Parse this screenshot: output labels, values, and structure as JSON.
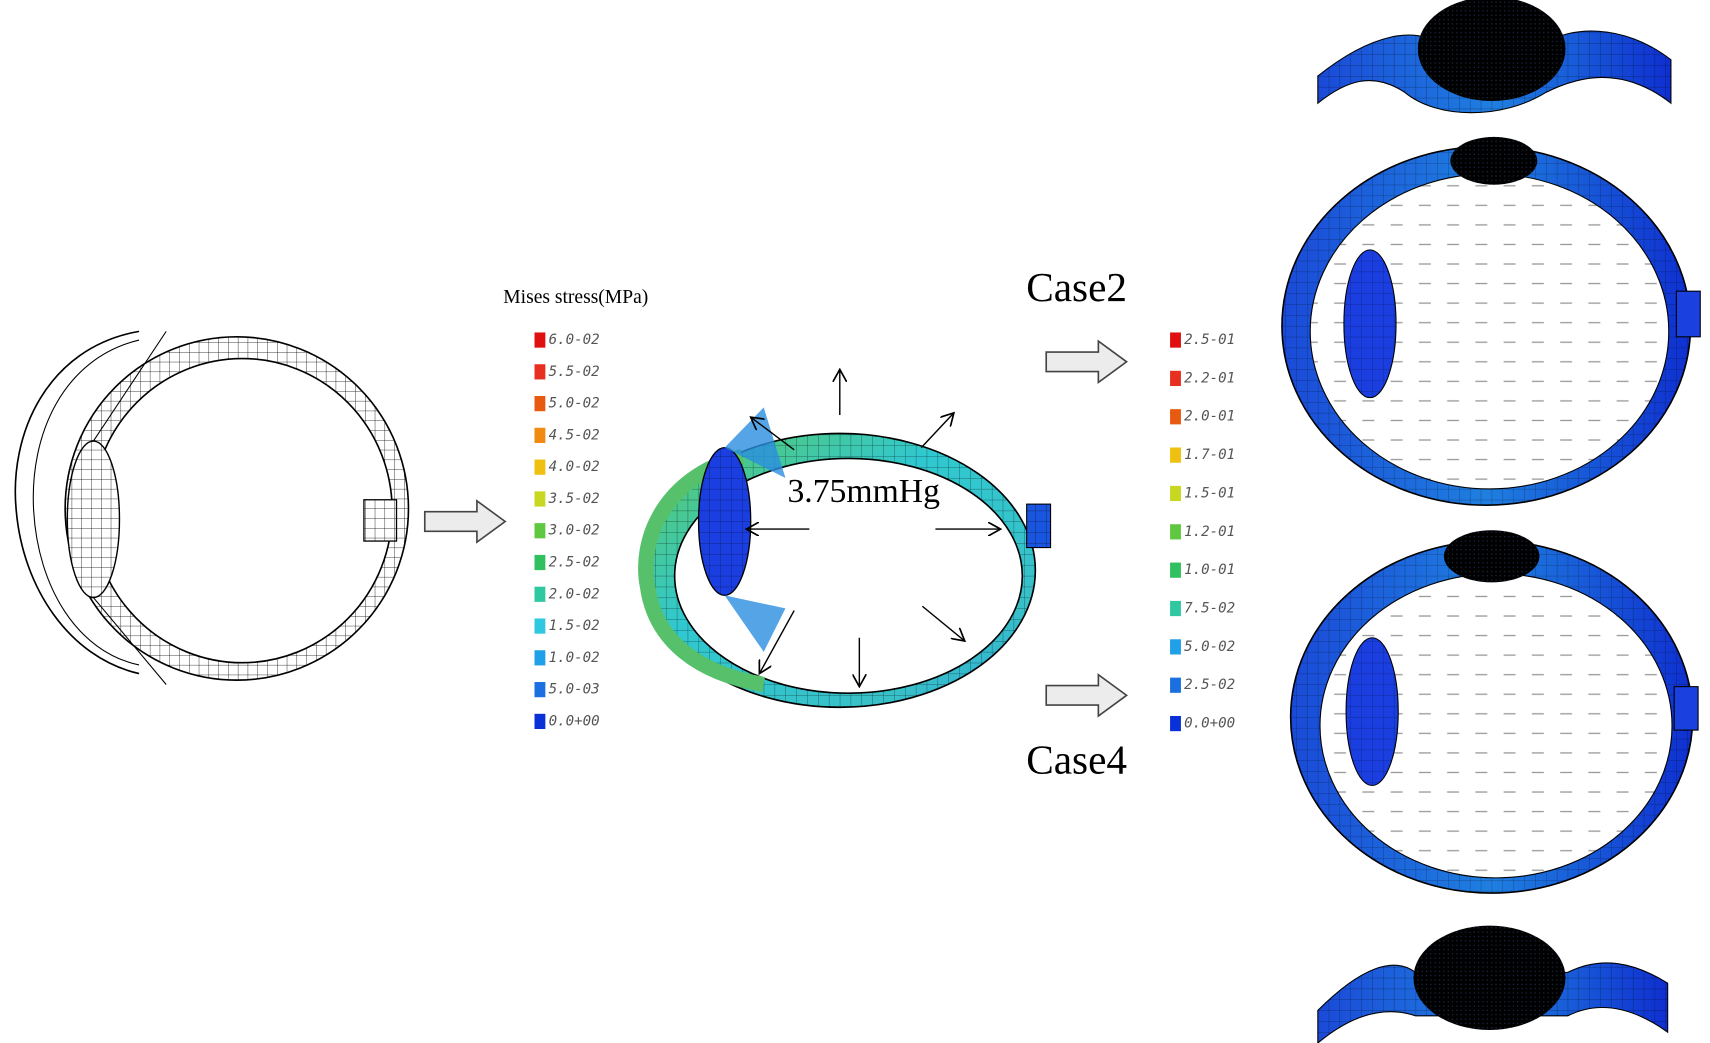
{
  "legend_left": {
    "title": "Mises stress(MPa)",
    "labels": [
      "6.0-02",
      "5.5-02",
      "5.0-02",
      "4.5-02",
      "4.0-02",
      "3.5-02",
      "3.0-02",
      "2.5-02",
      "2.0-02",
      "1.5-02",
      "1.0-02",
      "5.0-03",
      "0.0+00"
    ]
  },
  "pressure_label": "3.75mmHg",
  "cases": [
    "Case2",
    "Case4"
  ],
  "legend_right": {
    "labels": [
      "2.5-01",
      "2.2-01",
      "2.0-01",
      "1.7-01",
      "1.5-01",
      "1.2-01",
      "1.0-01",
      "7.5-02",
      "5.0-02",
      "2.5-02",
      "0.0+00"
    ]
  }
}
